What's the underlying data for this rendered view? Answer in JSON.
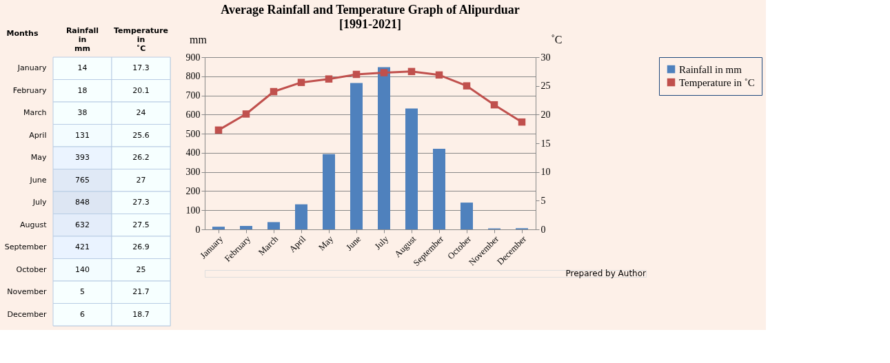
{
  "chart_data": [
    {
      "type": "heatmap",
      "ylabel": "Months",
      "categories": [
        "Rainfall in mm",
        "Temperature in ˚C"
      ],
      "y_categories": [
        "January",
        "February",
        "March",
        "April",
        "May",
        "June",
        "July",
        "August",
        "September",
        "October",
        "November",
        "December"
      ],
      "cells": [
        [
          14,
          17.3
        ],
        [
          18,
          20.1
        ],
        [
          38,
          24
        ],
        [
          131,
          25.6
        ],
        [
          393,
          26.2
        ],
        [
          765,
          27
        ],
        [
          848,
          27.3
        ],
        [
          632,
          27.5
        ],
        [
          421,
          26.9
        ],
        [
          140,
          25
        ],
        [
          5,
          21.7
        ],
        [
          6,
          18.7
        ]
      ],
      "cell_labels": [
        [
          "14",
          "17.3"
        ],
        [
          "18",
          "20.1"
        ],
        [
          "38",
          "24"
        ],
        [
          "131",
          "25.6"
        ],
        [
          "393",
          "26.2"
        ],
        [
          "765",
          "27"
        ],
        [
          "848",
          "27.3"
        ],
        [
          "632",
          "27.5"
        ],
        [
          "421",
          "26.9"
        ],
        [
          "140",
          "25"
        ],
        [
          "5",
          "21.7"
        ],
        [
          "6",
          "18.7"
        ]
      ]
    },
    {
      "type": "bar",
      "title": "Average Rainfall and Temperature  Graph of Alipurduar",
      "subtitle": "[1991-2021]",
      "ylabel": "mm",
      "y2label": "˚C",
      "categories": [
        "January",
        "February",
        "March",
        "April",
        "May",
        "June",
        "July",
        "August",
        "September",
        "October",
        "November",
        "December"
      ],
      "series": [
        {
          "name": "Rainfall in mm",
          "type": "bar",
          "color": "#4f81bd",
          "values": [
            14,
            18,
            38,
            131,
            393,
            765,
            848,
            632,
            421,
            140,
            5,
            6
          ]
        },
        {
          "name": "Temperature in ˚C",
          "type": "line",
          "axis": "y2",
          "color": "#c0504d",
          "values": [
            17.3,
            20.1,
            24,
            25.6,
            26.2,
            27,
            27.3,
            27.5,
            26.9,
            25,
            21.7,
            18.7
          ]
        }
      ],
      "ylim": [
        0,
        900
      ],
      "yticks": [
        0,
        100,
        200,
        300,
        400,
        500,
        600,
        700,
        800,
        900
      ],
      "y2lim": [
        0,
        30
      ],
      "y2ticks": [
        0,
        5,
        10,
        15,
        20,
        25,
        30
      ],
      "grid": "y",
      "legend": "right",
      "marker": "square",
      "line_style": "solid",
      "annotations": [
        "Prepared by Author"
      ]
    }
  ]
}
